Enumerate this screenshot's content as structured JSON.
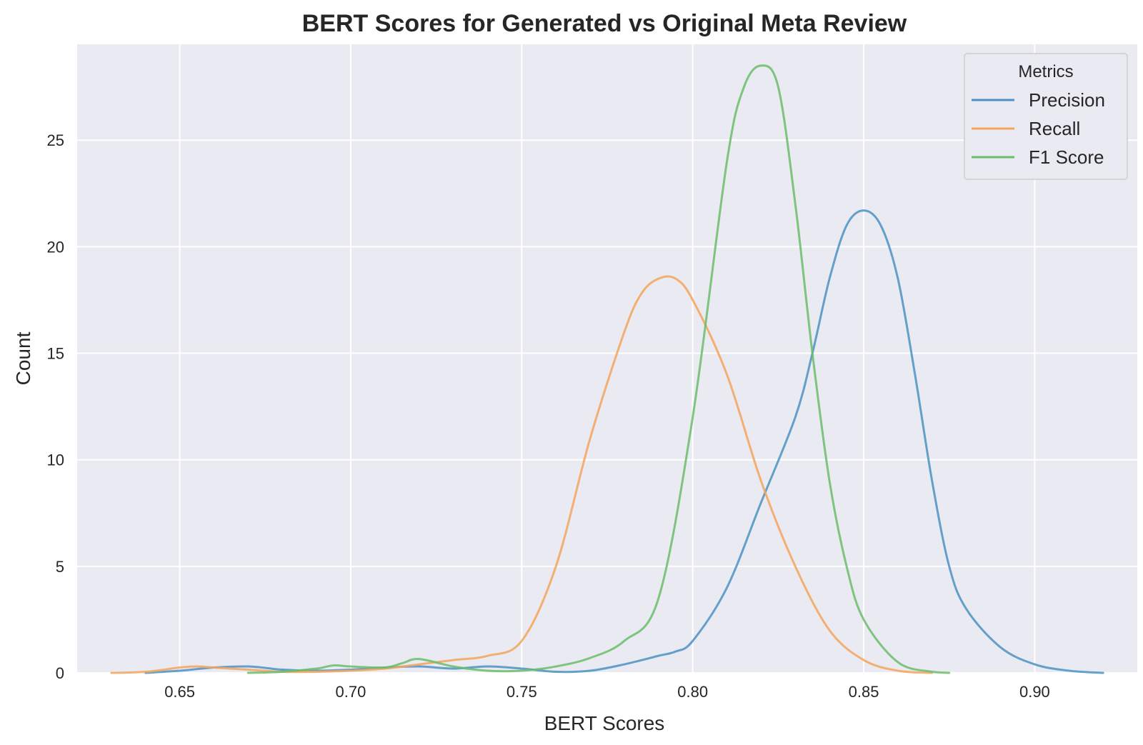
{
  "chart_data": {
    "type": "line",
    "title": "BERT Scores for Generated vs Original Meta Review",
    "xlabel": "BERT Scores",
    "ylabel": "Count",
    "xlim": [
      0.62,
      0.93
    ],
    "ylim": [
      0,
      29.5
    ],
    "x_ticks": [
      0.65,
      0.7,
      0.75,
      0.8,
      0.85,
      0.9
    ],
    "x_tick_labels": [
      "0.65",
      "0.70",
      "0.75",
      "0.80",
      "0.85",
      "0.90"
    ],
    "y_ticks": [
      0,
      5,
      10,
      15,
      20,
      25
    ],
    "y_tick_labels": [
      "0",
      "5",
      "10",
      "15",
      "20",
      "25"
    ],
    "grid": true,
    "legend": {
      "title": "Metrics",
      "placement": "top-right"
    },
    "series": [
      {
        "name": "Precision",
        "color": "#4c92c3",
        "x": [
          0.64,
          0.65,
          0.66,
          0.67,
          0.68,
          0.69,
          0.7,
          0.71,
          0.72,
          0.73,
          0.74,
          0.75,
          0.76,
          0.77,
          0.78,
          0.79,
          0.795,
          0.8,
          0.81,
          0.82,
          0.83,
          0.835,
          0.84,
          0.845,
          0.85,
          0.855,
          0.86,
          0.865,
          0.87,
          0.875,
          0.88,
          0.89,
          0.9,
          0.91,
          0.92
        ],
        "values": [
          0.0,
          0.1,
          0.25,
          0.3,
          0.15,
          0.1,
          0.15,
          0.25,
          0.3,
          0.2,
          0.3,
          0.2,
          0.05,
          0.1,
          0.4,
          0.8,
          1.0,
          1.5,
          4.0,
          8.0,
          12.0,
          15.0,
          18.5,
          21.0,
          21.7,
          21.0,
          18.5,
          14.0,
          9.0,
          5.0,
          3.0,
          1.2,
          0.4,
          0.1,
          0.0
        ]
      },
      {
        "name": "Recall",
        "color": "#f5a55c",
        "x": [
          0.63,
          0.64,
          0.65,
          0.655,
          0.66,
          0.67,
          0.68,
          0.69,
          0.7,
          0.71,
          0.72,
          0.73,
          0.74,
          0.75,
          0.76,
          0.77,
          0.78,
          0.785,
          0.79,
          0.795,
          0.8,
          0.81,
          0.82,
          0.83,
          0.84,
          0.85,
          0.86,
          0.87
        ],
        "values": [
          0.0,
          0.05,
          0.25,
          0.3,
          0.25,
          0.15,
          0.05,
          0.05,
          0.1,
          0.2,
          0.4,
          0.6,
          0.8,
          1.5,
          5.0,
          11.0,
          16.0,
          17.8,
          18.5,
          18.5,
          17.5,
          14.0,
          9.0,
          5.0,
          2.0,
          0.6,
          0.1,
          0.0
        ]
      },
      {
        "name": "F1 Score",
        "color": "#6abd6a",
        "x": [
          0.67,
          0.68,
          0.69,
          0.695,
          0.7,
          0.71,
          0.715,
          0.72,
          0.73,
          0.74,
          0.75,
          0.76,
          0.77,
          0.78,
          0.79,
          0.8,
          0.81,
          0.815,
          0.82,
          0.825,
          0.83,
          0.835,
          0.84,
          0.845,
          0.85,
          0.86,
          0.87,
          0.875
        ],
        "values": [
          0.0,
          0.05,
          0.2,
          0.35,
          0.3,
          0.25,
          0.45,
          0.65,
          0.3,
          0.1,
          0.1,
          0.3,
          0.7,
          1.5,
          3.5,
          12.0,
          24.0,
          27.5,
          28.5,
          27.5,
          22.0,
          15.0,
          9.0,
          5.0,
          2.5,
          0.5,
          0.05,
          0.0
        ]
      }
    ]
  }
}
